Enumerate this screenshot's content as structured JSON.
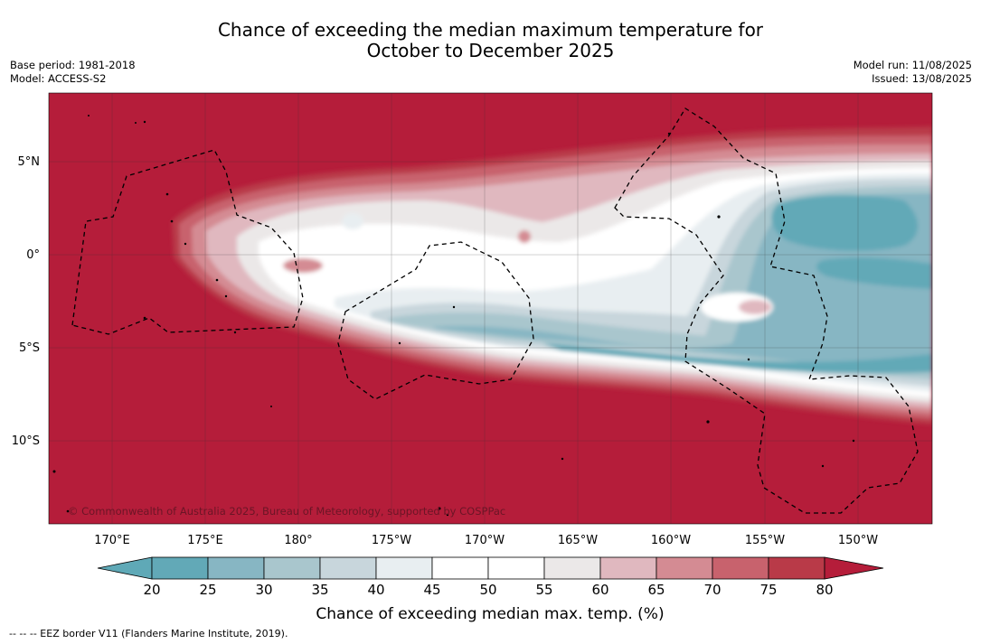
{
  "header": {
    "title_line1": "Chance of exceeding the median maximum temperature for",
    "title_line2": "October to December 2025",
    "base_period": "Base period: 1981-2018",
    "model": "Model: ACCESS-S2",
    "model_run": "Model run: 11/08/2025",
    "issued": "Issued: 13/08/2025"
  },
  "map": {
    "lat_labels": [
      "5°N",
      "0°",
      "5°S",
      "10°S"
    ],
    "lon_labels": [
      "170°E",
      "175°E",
      "180°",
      "175°W",
      "170°W",
      "165°W",
      "160°W",
      "155°W",
      "150°W"
    ],
    "copyright": "© Commonwealth of Australia 2025, Bureau of Meteorology, supported by COSPPac",
    "eez_color": "#000000"
  },
  "colorbar": {
    "ticks": [
      "20",
      "25",
      "30",
      "35",
      "40",
      "45",
      "50",
      "55",
      "60",
      "65",
      "70",
      "75",
      "80"
    ],
    "colors": [
      "#5fa9b7",
      "#62a9b7",
      "#87b6c3",
      "#a9c6cd",
      "#c8d6dc",
      "#e8eef1",
      "#ffffff",
      "#ffffff",
      "#ebe8e8",
      "#e0b8bf",
      "#d48b93",
      "#c8626d",
      "#b93a48",
      "#b51d3a"
    ],
    "title": "Chance of exceeding median max. temp. (%)"
  },
  "footnote": "--  --  -- EEZ border V11 (Flanders Marine Institute, 2019)."
}
